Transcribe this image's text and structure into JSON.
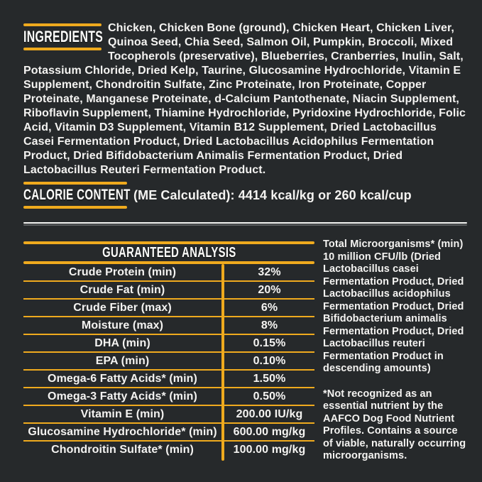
{
  "colors": {
    "background": "#26292B",
    "accent": "#EFAA1E",
    "text": "#F4F3F1",
    "rule_white": "#F8F8F6"
  },
  "ingredients": {
    "heading": "INGREDIENTS",
    "text": "Chicken, Chicken Bone (ground), Chicken Heart, Chicken Liver, Quinoa Seed, Chia Seed, Salmon Oil, Pumpkin, Broccoli, Mixed Tocopherols (preservative), Blueberries, Cranberries, Inulin, Salt, Potassium Chloride, Dried Kelp, Taurine, Glucosamine Hydrochloride, Vitamin E Supplement, Chondroitin Sulfate, Zinc Proteinate, Iron Proteinate, Copper Proteinate, Manganese Proteinate, d-Calcium Pantothenate, Niacin Supplement, Riboflavin Supplement, Thiamine Hydrochloride, Pyridoxine Hydrochloride, Folic Acid, Vitamin D3 Supplement, Vitamin B12 Supplement, Dried Lactobacillus Casei Fermentation Product, Dried Lactobacillus Acidophilus Fermentation Product, Dried Bifidobacterium Animalis Fermentation Product, Dried Lactobacillus Reuteri Fermentation Product."
  },
  "calorie": {
    "heading": "CALORIE CONTENT",
    "text": "(ME Calculated): 4414 kcal/kg or 260 kcal/cup"
  },
  "guaranteed_analysis": {
    "title": "GUARANTEED ANALYSIS",
    "rows": [
      {
        "label": "Crude Protein (min)",
        "value": "32%"
      },
      {
        "label": "Crude Fat (min)",
        "value": "20%"
      },
      {
        "label": "Crude Fiber (max)",
        "value": "6%"
      },
      {
        "label": "Moisture (max)",
        "value": "8%"
      },
      {
        "label": "DHA (min)",
        "value": "0.15%"
      },
      {
        "label": "EPA (min)",
        "value": "0.10%"
      },
      {
        "label": "Omega-6 Fatty Acids* (min)",
        "value": "1.50%"
      },
      {
        "label": "Omega-3 Fatty Acids* (min)",
        "value": "0.50%"
      },
      {
        "label": "Vitamin E (min)",
        "value": "200.00 IU/kg"
      },
      {
        "label": "Glucosamine Hydrochloride* (min)",
        "value": "600.00 mg/kg"
      },
      {
        "label": "Chondroitin Sulfate* (min)",
        "value": "100.00 mg/kg"
      }
    ]
  },
  "notes": {
    "microorganisms": "Total Microorganisms* (min) 10 million CFU/lb (Dried Lactobacillus casei Fermentation Product, Dried Lactobacillus acidophilus Fermentation Product, Dried Bifidobacterium animalis Fermentation Product, Dried Lactobacillus reuteri Fermentation Product in descending amounts)",
    "aafco": "*Not recognized as an essential nutrient by the AAFCO Dog Food Nutrient Profiles. Contains a source of viable, naturally occurring microorganisms."
  }
}
